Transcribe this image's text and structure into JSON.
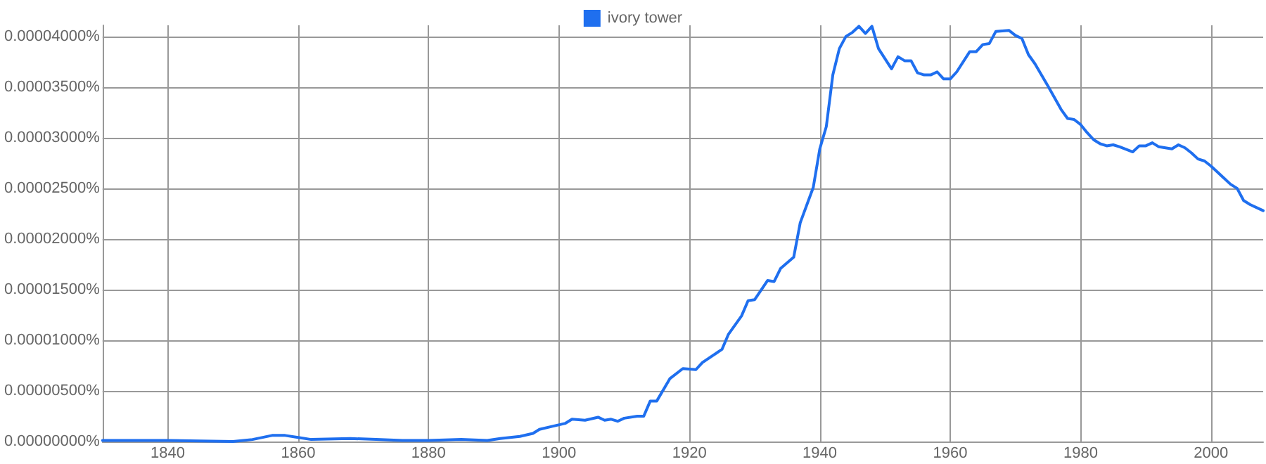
{
  "chart_data": {
    "type": "line",
    "legend": "top",
    "grid": true,
    "xlim": [
      1830,
      2008
    ],
    "xticks": [
      1840,
      1860,
      1880,
      1900,
      1920,
      1940,
      1960,
      1980,
      2000
    ],
    "ylim": [
      0,
      4.11e-05
    ],
    "yticks": [
      {
        "value": 0,
        "label": "0.00000000%"
      },
      {
        "value": 5e-06,
        "label": "0.00000500%"
      },
      {
        "value": 1e-05,
        "label": "0.00001000%"
      },
      {
        "value": 1.5e-05,
        "label": "0.00001500%"
      },
      {
        "value": 2e-05,
        "label": "0.00002000%"
      },
      {
        "value": 2.5e-05,
        "label": "0.00002500%"
      },
      {
        "value": 3e-05,
        "label": "0.00003000%"
      },
      {
        "value": 3.5e-05,
        "label": "0.00003500%"
      },
      {
        "value": 4e-05,
        "label": "0.00004000%"
      }
    ],
    "series": [
      {
        "name": "ivory tower",
        "color": "#1f6fef",
        "x": [
          1830,
          1840,
          1850,
          1853,
          1856,
          1858,
          1860,
          1862,
          1868,
          1872,
          1876,
          1880,
          1885,
          1889,
          1891,
          1894,
          1896,
          1897,
          1899,
          1901,
          1902,
          1904,
          1906,
          1907,
          1908,
          1909,
          1910,
          1912,
          1913,
          1914,
          1915,
          1917,
          1919,
          1921,
          1922,
          1925,
          1926,
          1928,
          1929,
          1930,
          1932,
          1933,
          1934,
          1936,
          1937,
          1939,
          1940,
          1941,
          1942,
          1943,
          1944,
          1945,
          1946,
          1947,
          1948,
          1949,
          1951,
          1952,
          1953,
          1954,
          1955,
          1956,
          1957,
          1958,
          1959,
          1960,
          1961,
          1963,
          1964,
          1965,
          1966,
          1967,
          1969,
          1970,
          1971,
          1972,
          1973,
          1975,
          1977,
          1978,
          1979,
          1980,
          1981,
          1982,
          1983,
          1984,
          1985,
          1986,
          1988,
          1989,
          1990,
          1991,
          1992,
          1994,
          1995,
          1996,
          1997,
          1998,
          1999,
          2000,
          2002,
          2003,
          2004,
          2005,
          2006,
          2008
        ],
        "values": [
          1e-07,
          1e-07,
          0,
          2e-07,
          6e-07,
          6e-07,
          4e-07,
          2e-07,
          3e-07,
          2e-07,
          1e-07,
          1e-07,
          2e-07,
          1e-07,
          3e-07,
          5e-07,
          8e-07,
          1.2e-06,
          1.5e-06,
          1.8e-06,
          2.2e-06,
          2.1e-06,
          2.4e-06,
          2.1e-06,
          2.2e-06,
          2e-06,
          2.3e-06,
          2.5e-06,
          2.5e-06,
          4e-06,
          4e-06,
          6.2e-06,
          7.2e-06,
          7.1e-06,
          7.8e-06,
          9.1e-06,
          1.06e-05,
          1.24e-05,
          1.39e-05,
          1.4e-05,
          1.59e-05,
          1.58e-05,
          1.71e-05,
          1.82e-05,
          2.16e-05,
          2.51e-05,
          2.89e-05,
          3.11e-05,
          3.62e-05,
          3.88e-05,
          4e-05,
          4.04e-05,
          4.1e-05,
          4.03e-05,
          4.1e-05,
          3.88e-05,
          3.68e-05,
          3.8e-05,
          3.76e-05,
          3.76e-05,
          3.64e-05,
          3.62e-05,
          3.62e-05,
          3.65e-05,
          3.58e-05,
          3.58e-05,
          3.65e-05,
          3.85e-05,
          3.85e-05,
          3.92e-05,
          3.93e-05,
          4.05e-05,
          4.06e-05,
          4.01e-05,
          3.98e-05,
          3.82e-05,
          3.73e-05,
          3.51e-05,
          3.28e-05,
          3.19e-05,
          3.18e-05,
          3.13e-05,
          3.05e-05,
          2.98e-05,
          2.94e-05,
          2.92e-05,
          2.93e-05,
          2.91e-05,
          2.86e-05,
          2.92e-05,
          2.92e-05,
          2.95e-05,
          2.91e-05,
          2.89e-05,
          2.93e-05,
          2.9e-05,
          2.85e-05,
          2.79e-05,
          2.77e-05,
          2.72e-05,
          2.6e-05,
          2.54e-05,
          2.5e-05,
          2.38e-05,
          2.34e-05,
          2.28e-05
        ]
      }
    ]
  }
}
